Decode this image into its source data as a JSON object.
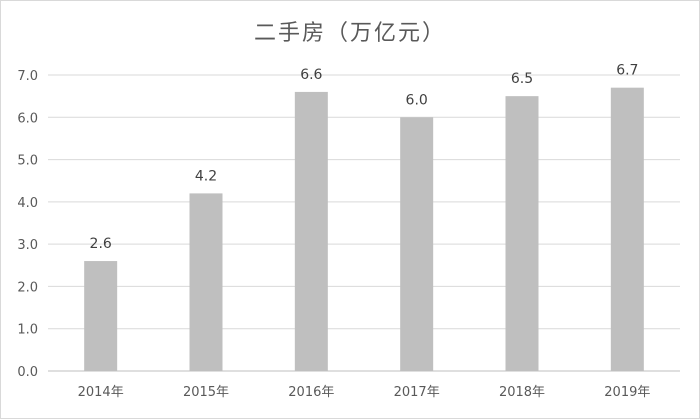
{
  "chart_data": {
    "type": "bar",
    "title": "二手房（万亿元）",
    "categories": [
      "2014年",
      "2015年",
      "2016年",
      "2017年",
      "2018年",
      "2019年"
    ],
    "values": [
      2.6,
      4.2,
      6.6,
      6.0,
      6.5,
      6.7
    ],
    "value_labels": [
      "2.6",
      "4.2",
      "6.6",
      "6.0",
      "6.5",
      "6.7"
    ],
    "ylim": [
      0,
      7
    ],
    "yticks": [
      "0.0",
      "1.0",
      "2.0",
      "3.0",
      "4.0",
      "5.0",
      "6.0",
      "7.0"
    ],
    "xlabel": "",
    "ylabel": "",
    "grid": true,
    "legend": "none",
    "colors": {
      "bar": "#bfbfbf",
      "grid": "#d9d9d9",
      "text": "#595959"
    }
  }
}
